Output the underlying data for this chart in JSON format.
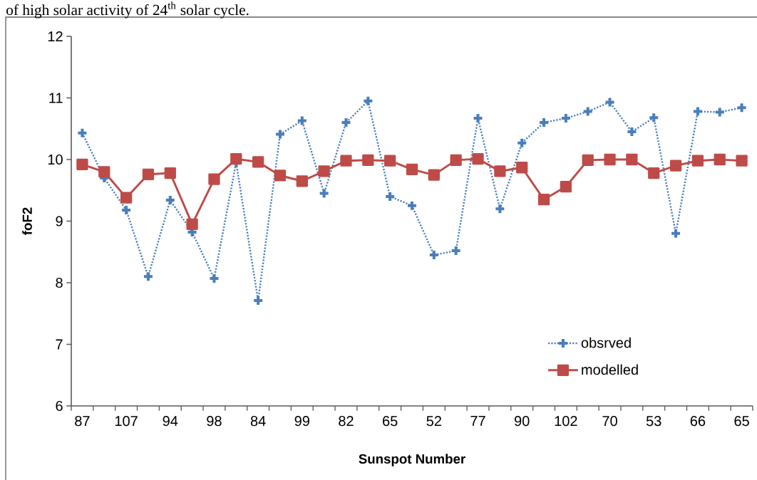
{
  "chart_data": {
    "type": "line",
    "annotations": [
      "of high solar activity of 24$^{th}$ solar cycle."
    ],
    "xlabel": "Sunspot Number",
    "ylabel": "foF2",
    "categories": [
      "87",
      null,
      "107",
      null,
      "94",
      null,
      "98",
      null,
      "84",
      null,
      "99",
      null,
      "82",
      null,
      "65",
      null,
      "52",
      null,
      "77",
      null,
      "90",
      null,
      "102",
      null,
      "70",
      null,
      "53",
      null,
      "66",
      null,
      "65"
    ],
    "ylim": [
      6,
      12
    ],
    "yticks": [
      6,
      7,
      8,
      9,
      10,
      11,
      12
    ],
    "legend": "bottom right",
    "series": [
      {
        "name": "obsrved",
        "color": "#4a7ebb",
        "marker": "cross",
        "line_style": "dotted",
        "values": [
          10.43,
          9.7,
          9.18,
          8.1,
          9.34,
          8.82,
          8.07,
          9.95,
          7.71,
          10.41,
          10.63,
          9.45,
          10.6,
          10.95,
          9.4,
          9.25,
          8.45,
          8.52,
          10.67,
          9.2,
          10.27,
          10.6,
          10.67,
          10.78,
          10.93,
          10.45,
          10.68,
          8.8,
          10.78,
          10.77,
          10.84
        ]
      },
      {
        "name": "modelled",
        "color": "#be4b48",
        "marker": "square",
        "line_style": "solid",
        "values": [
          9.92,
          9.8,
          9.38,
          9.76,
          9.78,
          8.95,
          9.68,
          10.01,
          9.96,
          9.74,
          9.65,
          9.81,
          9.98,
          9.99,
          9.98,
          9.84,
          9.75,
          9.99,
          10.01,
          9.81,
          9.87,
          9.35,
          9.56,
          9.99,
          10.0,
          10.0,
          9.78,
          9.9,
          9.98,
          10.0,
          9.98
        ]
      }
    ]
  }
}
